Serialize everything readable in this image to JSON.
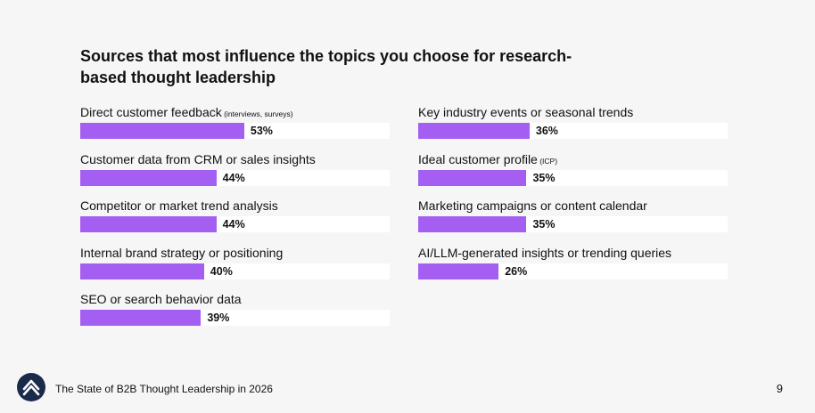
{
  "chart_data": {
    "type": "bar",
    "title": "Sources that most influence the topics you choose for research-based thought leadership",
    "unit": "%",
    "xlim": [
      0,
      100
    ],
    "categories": [
      "Direct customer feedback",
      "Customer data from CRM or sales insights",
      "Competitor or market trend analysis",
      "Internal brand strategy or positioning",
      "SEO or search behavior data",
      "Key industry events or seasonal trends",
      "Ideal customer profile",
      "Marketing campaigns or content calendar",
      "AI/LLM-generated insights or trending queries"
    ],
    "values": [
      53,
      44,
      44,
      40,
      39,
      36,
      35,
      35,
      26
    ],
    "value_labels": [
      "53%",
      "44%",
      "44%",
      "40%",
      "39%",
      "36%",
      "35%",
      "35%",
      "26%"
    ],
    "annotations": [
      "(interviews, surveys)",
      "",
      "",
      "",
      "",
      "",
      "(ICP)",
      "",
      ""
    ],
    "columns": [
      [
        0,
        1,
        2,
        3,
        4
      ],
      [
        5,
        6,
        7,
        8
      ]
    ],
    "bar_color": "#a45ff2",
    "track_color": "#ffffff"
  },
  "footer": {
    "report_title": "The State of B2B Thought Leadership in 2026",
    "page_number": "9",
    "logo_icon": "chevron-up-logo-icon",
    "logo_color": "#1a2a4a"
  }
}
